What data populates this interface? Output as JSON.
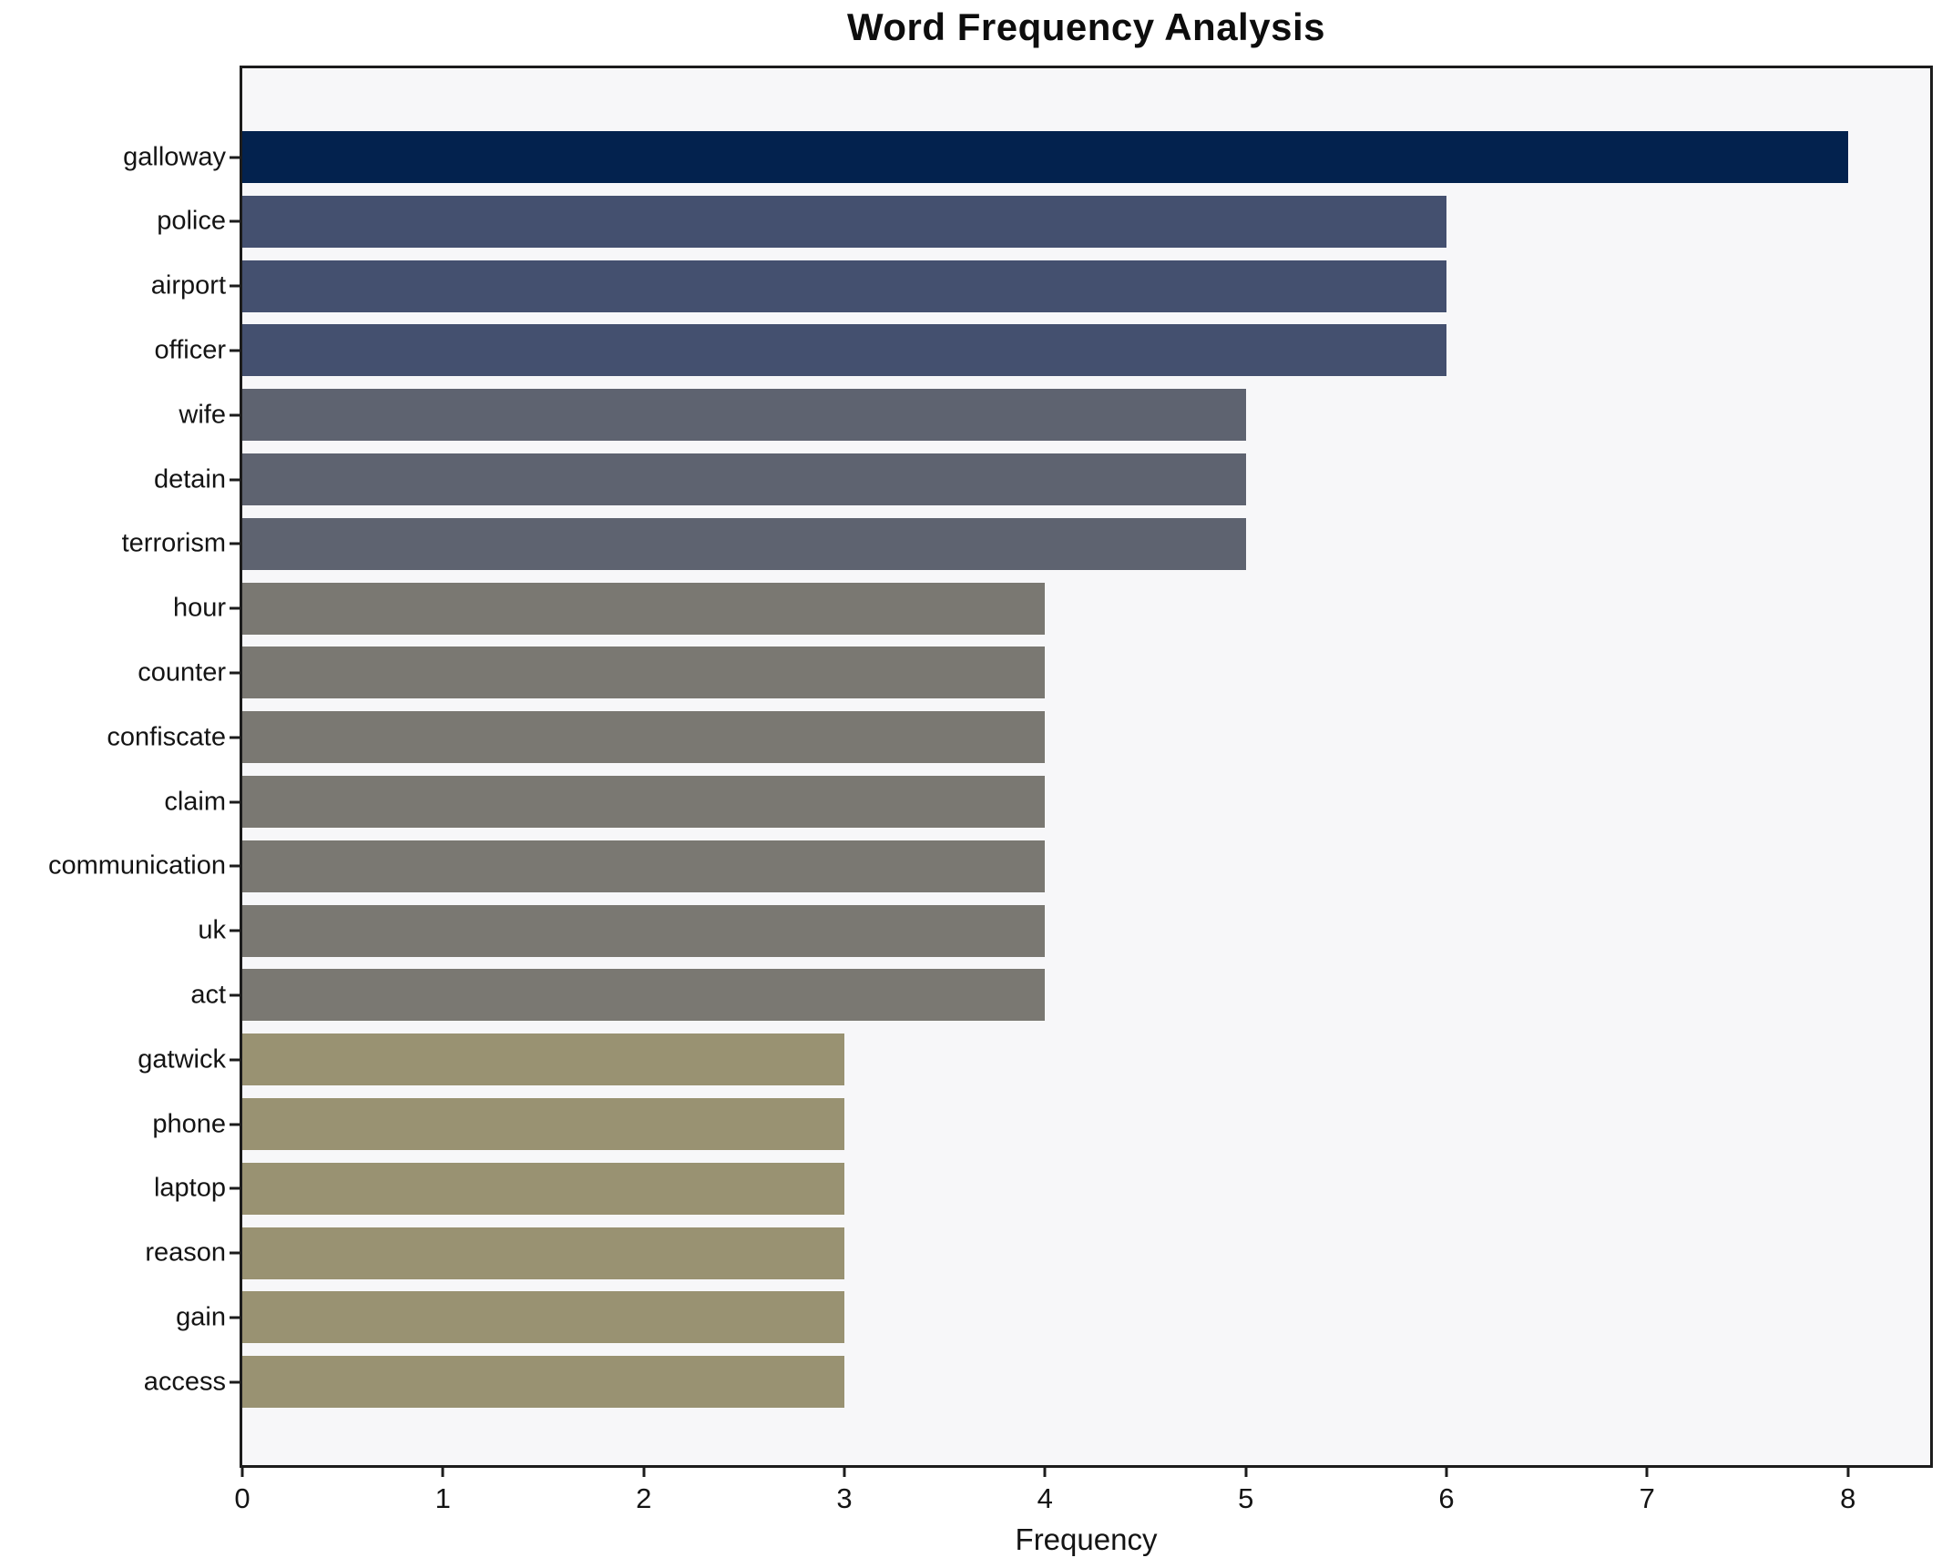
{
  "chart_data": {
    "type": "bar",
    "orientation": "horizontal",
    "title": "Word Frequency Analysis",
    "xlabel": "Frequency",
    "ylabel": "",
    "legend": null,
    "grid": false,
    "categories": [
      "galloway",
      "police",
      "airport",
      "officer",
      "wife",
      "detain",
      "terrorism",
      "hour",
      "counter",
      "confiscate",
      "claim",
      "communication",
      "uk",
      "act",
      "gatwick",
      "phone",
      "laptop",
      "reason",
      "gain",
      "access"
    ],
    "values": [
      8,
      6,
      6,
      6,
      5,
      5,
      5,
      4,
      4,
      4,
      4,
      4,
      4,
      4,
      3,
      3,
      3,
      3,
      3,
      3
    ],
    "bar_colors": [
      "#03224e",
      "#44506f",
      "#44506f",
      "#44506f",
      "#5e6370",
      "#5e6370",
      "#5e6370",
      "#7a7872",
      "#7a7872",
      "#7a7872",
      "#7a7872",
      "#7a7872",
      "#7a7872",
      "#7a7872",
      "#999272",
      "#999272",
      "#999272",
      "#999272",
      "#999272",
      "#999272"
    ],
    "value_color_map": {
      "8": "#03224e",
      "6": "#44506f",
      "5": "#5e6370",
      "4": "#7a7872",
      "3": "#999272"
    },
    "x_ticks": [
      0,
      1,
      2,
      3,
      4,
      5,
      6,
      7,
      8
    ],
    "xlim": [
      0,
      8.41
    ],
    "plot_background": "#f7f7f9",
    "figure_background": "#ffffff",
    "spine_color": "#1c1c1c"
  }
}
